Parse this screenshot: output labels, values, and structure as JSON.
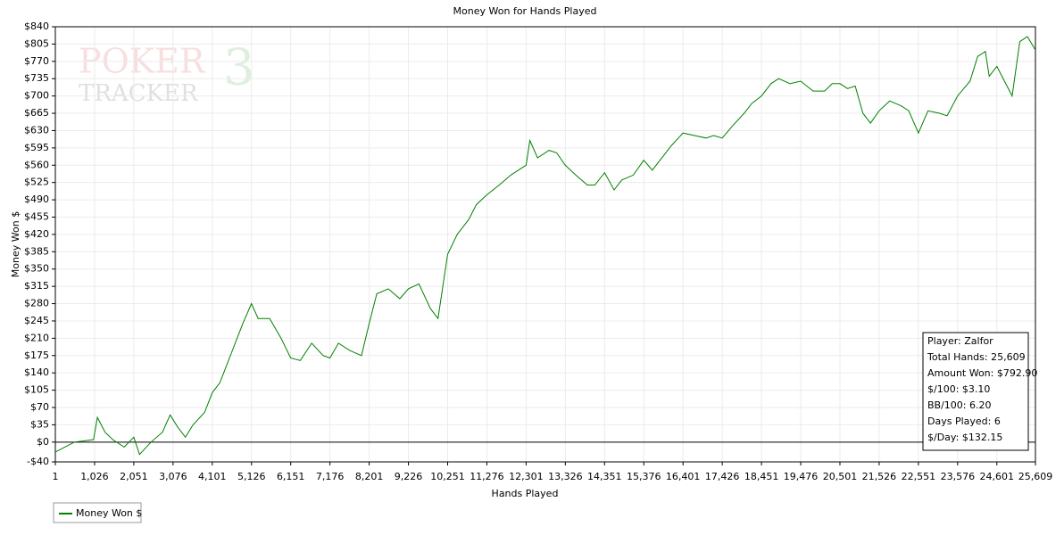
{
  "chart_data": {
    "type": "line",
    "title": "Money Won for Hands Played",
    "x_label": "Hands Played",
    "y_label": "Money Won $",
    "watermark": [
      "POKER",
      "3",
      "TRACKER"
    ],
    "grid": true,
    "xlim": [
      1,
      25609
    ],
    "ylim": [
      -40,
      840
    ],
    "xticks": [
      {
        "value": 1,
        "label": "1"
      },
      {
        "value": 1026,
        "label": "1,026"
      },
      {
        "value": 2051,
        "label": "2,051"
      },
      {
        "value": 3076,
        "label": "3,076"
      },
      {
        "value": 4101,
        "label": "4,101"
      },
      {
        "value": 5126,
        "label": "5,126"
      },
      {
        "value": 6151,
        "label": "6,151"
      },
      {
        "value": 7176,
        "label": "7,176"
      },
      {
        "value": 8201,
        "label": "8,201"
      },
      {
        "value": 9226,
        "label": "9,226"
      },
      {
        "value": 10251,
        "label": "10,251"
      },
      {
        "value": 11276,
        "label": "11,276"
      },
      {
        "value": 12301,
        "label": "12,301"
      },
      {
        "value": 13326,
        "label": "13,326"
      },
      {
        "value": 14351,
        "label": "14,351"
      },
      {
        "value": 15376,
        "label": "15,376"
      },
      {
        "value": 16401,
        "label": "16,401"
      },
      {
        "value": 17426,
        "label": "17,426"
      },
      {
        "value": 18451,
        "label": "18,451"
      },
      {
        "value": 19476,
        "label": "19,476"
      },
      {
        "value": 20501,
        "label": "20,501"
      },
      {
        "value": 21526,
        "label": "21,526"
      },
      {
        "value": 22551,
        "label": "22,551"
      },
      {
        "value": 23576,
        "label": "23,576"
      },
      {
        "value": 24601,
        "label": "24,601"
      },
      {
        "value": 25609,
        "label": "25,609"
      }
    ],
    "yticks": [
      {
        "value": -40,
        "label": "-$40"
      },
      {
        "value": 0,
        "label": "$0"
      },
      {
        "value": 35,
        "label": "$35"
      },
      {
        "value": 70,
        "label": "$70"
      },
      {
        "value": 105,
        "label": "$105"
      },
      {
        "value": 140,
        "label": "$140"
      },
      {
        "value": 175,
        "label": "$175"
      },
      {
        "value": 210,
        "label": "$210"
      },
      {
        "value": 245,
        "label": "$245"
      },
      {
        "value": 280,
        "label": "$280"
      },
      {
        "value": 315,
        "label": "$315"
      },
      {
        "value": 350,
        "label": "$350"
      },
      {
        "value": 385,
        "label": "$385"
      },
      {
        "value": 420,
        "label": "$420"
      },
      {
        "value": 455,
        "label": "$455"
      },
      {
        "value": 490,
        "label": "$490"
      },
      {
        "value": 525,
        "label": "$525"
      },
      {
        "value": 560,
        "label": "$560"
      },
      {
        "value": 595,
        "label": "$595"
      },
      {
        "value": 630,
        "label": "$630"
      },
      {
        "value": 665,
        "label": "$665"
      },
      {
        "value": 700,
        "label": "$700"
      },
      {
        "value": 735,
        "label": "$735"
      },
      {
        "value": 770,
        "label": "$770"
      },
      {
        "value": 805,
        "label": "$805"
      },
      {
        "value": 840,
        "label": "$840"
      }
    ],
    "x": [
      1,
      500,
      1000,
      1100,
      1300,
      1500,
      1800,
      2051,
      2200,
      2500,
      2800,
      3000,
      3200,
      3400,
      3600,
      3900,
      4100,
      4300,
      4600,
      4900,
      5126,
      5300,
      5600,
      5900,
      6151,
      6400,
      6700,
      7000,
      7176,
      7400,
      7700,
      8000,
      8201,
      8400,
      8700,
      9000,
      9226,
      9500,
      9800,
      10000,
      10251,
      10500,
      10800,
      11000,
      11276,
      11600,
      11900,
      12100,
      12301,
      12400,
      12600,
      12900,
      13100,
      13326,
      13600,
      13900,
      14100,
      14351,
      14600,
      14800,
      15100,
      15376,
      15600,
      15900,
      16100,
      16401,
      16700,
      17000,
      17200,
      17426,
      17700,
      18000,
      18200,
      18451,
      18700,
      18900,
      19200,
      19476,
      19800,
      20100,
      20300,
      20501,
      20700,
      20900,
      21100,
      21300,
      21526,
      21800,
      22100,
      22300,
      22551,
      22800,
      23100,
      23300,
      23576,
      23900,
      24100,
      24300,
      24400,
      24601,
      24800,
      25000,
      25200,
      25400,
      25609
    ],
    "series": [
      {
        "name": "Money Won $",
        "color": "#008000",
        "values": [
          -20,
          0,
          5,
          50,
          20,
          5,
          -10,
          10,
          -25,
          0,
          20,
          55,
          30,
          10,
          35,
          60,
          100,
          120,
          180,
          240,
          280,
          250,
          250,
          210,
          170,
          165,
          200,
          175,
          170,
          200,
          185,
          175,
          240,
          300,
          310,
          290,
          310,
          320,
          270,
          250,
          380,
          420,
          450,
          480,
          500,
          520,
          540,
          550,
          560,
          610,
          575,
          590,
          585,
          560,
          540,
          520,
          520,
          545,
          510,
          530,
          540,
          570,
          550,
          580,
          600,
          625,
          620,
          615,
          620,
          615,
          640,
          665,
          685,
          700,
          725,
          735,
          725,
          730,
          710,
          710,
          725,
          725,
          715,
          720,
          665,
          645,
          670,
          690,
          680,
          670,
          625,
          670,
          665,
          660,
          700,
          730,
          780,
          790,
          740,
          760,
          730,
          700,
          810,
          820,
          793
        ]
      }
    ],
    "stats": [
      "Player: Zalfor",
      "Total Hands: 25,609",
      "Amount Won: $792.90",
      "$/100: $3.10",
      "BB/100: 6.20",
      "Days Played: 6",
      "$/Day: $132.15"
    ]
  }
}
